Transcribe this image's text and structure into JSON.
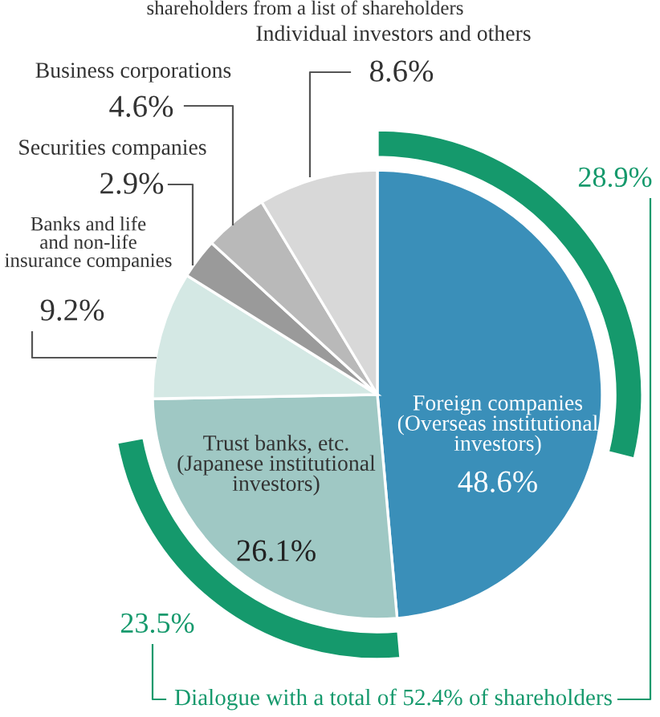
{
  "chart_data": {
    "type": "pie",
    "title": "shareholders from a list of shareholders",
    "categories": [
      "Foreign companies\n(Overseas institutional\ninvestors)",
      "Trust banks, etc.\n(Japanese institutional\ninvestors)",
      "Banks and life\nand non-life\ninsurance companies",
      "Securities companies",
      "Business corporations",
      "Individual investors and others"
    ],
    "series": [
      {
        "values": [
          48.6,
          26.1,
          9.2,
          2.9,
          4.6,
          8.6
        ],
        "colors": [
          "#3a8fb9",
          "#9fc8c4",
          "#d4e8e4",
          "#9a9a9a",
          "#b9b9b9",
          "#d8d8d8"
        ],
        "value_labels": [
          "48.6%",
          "26.1%",
          "9.2%",
          "2.9%",
          "4.6%",
          "8.6%"
        ]
      },
      {
        "type": "donut",
        "values": [
          28.9,
          23.5,
          null,
          null,
          null,
          null
        ],
        "colors": [
          "#15996c",
          "#15996c",
          null,
          null,
          null,
          null
        ],
        "value_labels": [
          "28.9%",
          "23.5%",
          null,
          null,
          null,
          null
        ]
      }
    ],
    "annotations": [
      "Dialogue with a total of 52.4% of shareholders"
    ]
  }
}
